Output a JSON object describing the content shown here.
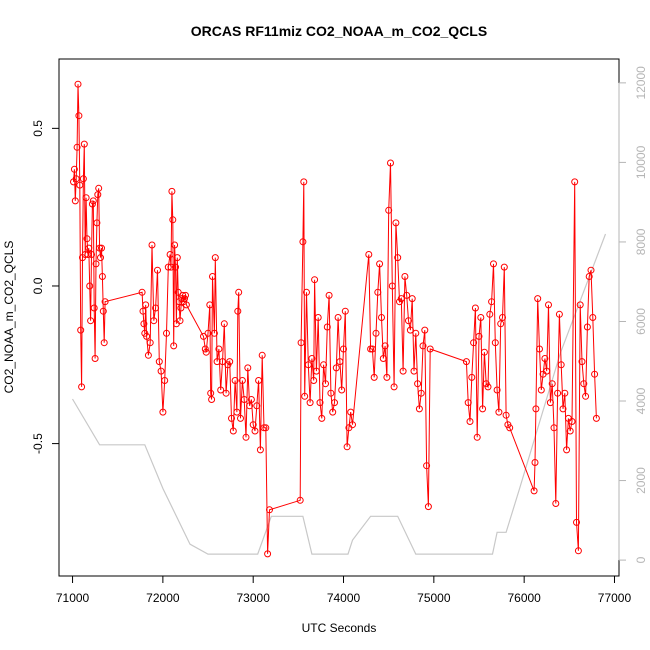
{
  "chart_data": {
    "type": "line",
    "title": "ORCAS RF11miz CO2_NOAA_m_CO2_QCLS",
    "xlabel": "UTC Seconds",
    "ylabel": "CO2_NOAA_m_CO2_QCLS",
    "xlim": [
      70850,
      77050
    ],
    "ylim": [
      -0.92,
      0.72
    ],
    "y2lim": [
      -400,
      12600
    ],
    "x_ticks": [
      71000,
      72000,
      73000,
      74000,
      75000,
      76000,
      77000
    ],
    "y_ticks": [
      -0.5,
      0.0,
      0.5
    ],
    "y_tick_labels": [
      "-0.5",
      "0.0",
      "0.5"
    ],
    "y2_ticks": [
      0,
      2000,
      4000,
      6000,
      8000,
      10000,
      12000
    ],
    "grid": false,
    "series": [
      {
        "role": "difference",
        "color": "#ff0000",
        "marker": "open-circle",
        "points": [
          [
            71010,
            0.33
          ],
          [
            71020,
            0.37
          ],
          [
            71030,
            0.27
          ],
          [
            71040,
            0.34
          ],
          [
            71050,
            0.44
          ],
          [
            71060,
            0.64
          ],
          [
            71070,
            0.54
          ],
          [
            71080,
            0.32
          ],
          [
            71090,
            -0.14
          ],
          [
            71100,
            -0.32
          ],
          [
            71110,
            0.09
          ],
          [
            71120,
            0.34
          ],
          [
            71130,
            0.45
          ],
          [
            71140,
            0.1
          ],
          [
            71150,
            0.28
          ],
          [
            71160,
            0.15
          ],
          [
            71170,
            0.1
          ],
          [
            71180,
            0.12
          ],
          [
            71190,
            0.0
          ],
          [
            71200,
            -0.11
          ],
          [
            71210,
            0.1
          ],
          [
            71220,
            0.26
          ],
          [
            71230,
            0.27
          ],
          [
            71240,
            -0.07
          ],
          [
            71250,
            -0.23
          ],
          [
            71260,
            0.07
          ],
          [
            71270,
            0.2
          ],
          [
            71280,
            0.29
          ],
          [
            71290,
            0.31
          ],
          [
            71300,
            0.12
          ],
          [
            71310,
            0.09
          ],
          [
            71320,
            0.12
          ],
          [
            71330,
            0.03
          ],
          [
            71340,
            -0.08
          ],
          [
            71350,
            -0.18
          ],
          [
            71360,
            -0.05
          ],
          [
            71770,
            -0.02
          ],
          [
            71780,
            -0.08
          ],
          [
            71790,
            -0.12
          ],
          [
            71800,
            -0.15
          ],
          [
            71810,
            -0.06
          ],
          [
            71820,
            -0.16
          ],
          [
            71840,
            -0.22
          ],
          [
            71860,
            -0.18
          ],
          [
            71880,
            0.13
          ],
          [
            71900,
            -0.11
          ],
          [
            71920,
            -0.07
          ],
          [
            71940,
            0.05
          ],
          [
            71960,
            -0.24
          ],
          [
            71980,
            -0.27
          ],
          [
            72000,
            -0.4
          ],
          [
            72020,
            -0.3
          ],
          [
            72040,
            -0.15
          ],
          [
            72060,
            0.06
          ],
          [
            72080,
            0.1
          ],
          [
            72090,
            0.06
          ],
          [
            72100,
            0.3
          ],
          [
            72110,
            0.21
          ],
          [
            72120,
            -0.19
          ],
          [
            72130,
            0.13
          ],
          [
            72140,
            0.06
          ],
          [
            72150,
            -0.12
          ],
          [
            72160,
            0.09
          ],
          [
            72170,
            -0.02
          ],
          [
            72180,
            -0.05
          ],
          [
            72190,
            -0.11
          ],
          [
            72200,
            -0.07
          ],
          [
            72210,
            -0.04
          ],
          [
            72220,
            -0.03
          ],
          [
            72230,
            -0.05
          ],
          [
            72240,
            -0.04
          ],
          [
            72250,
            -0.03
          ],
          [
            72260,
            -0.06
          ],
          [
            72450,
            -0.16
          ],
          [
            72470,
            -0.2
          ],
          [
            72480,
            -0.21
          ],
          [
            72500,
            -0.15
          ],
          [
            72520,
            -0.06
          ],
          [
            72530,
            -0.34
          ],
          [
            72540,
            -0.36
          ],
          [
            72550,
            0.03
          ],
          [
            72570,
            -0.15
          ],
          [
            72580,
            0.09
          ],
          [
            72600,
            -0.24
          ],
          [
            72620,
            -0.2
          ],
          [
            72640,
            -0.33
          ],
          [
            72660,
            -0.24
          ],
          [
            72680,
            -0.12
          ],
          [
            72700,
            -0.34
          ],
          [
            72720,
            -0.25
          ],
          [
            72740,
            -0.24
          ],
          [
            72760,
            -0.42
          ],
          [
            72780,
            -0.46
          ],
          [
            72800,
            -0.3
          ],
          [
            72820,
            -0.4
          ],
          [
            72830,
            -0.08
          ],
          [
            72840,
            -0.02
          ],
          [
            72860,
            -0.42
          ],
          [
            72880,
            -0.3
          ],
          [
            72900,
            -0.36
          ],
          [
            72920,
            -0.48
          ],
          [
            72940,
            -0.26
          ],
          [
            72960,
            -0.38
          ],
          [
            72980,
            -0.36
          ],
          [
            73000,
            -0.44
          ],
          [
            73020,
            -0.46
          ],
          [
            73040,
            -0.38
          ],
          [
            73060,
            -0.3
          ],
          [
            73080,
            -0.52
          ],
          [
            73100,
            -0.22
          ],
          [
            73120,
            -0.45
          ],
          [
            73140,
            -0.45
          ],
          [
            73160,
            -0.85
          ],
          [
            73180,
            -0.71
          ],
          [
            73520,
            -0.68
          ],
          [
            73530,
            -0.18
          ],
          [
            73550,
            0.14
          ],
          [
            73560,
            0.33
          ],
          [
            73570,
            -0.35
          ],
          [
            73590,
            -0.02
          ],
          [
            73610,
            -0.25
          ],
          [
            73630,
            -0.37
          ],
          [
            73650,
            -0.23
          ],
          [
            73670,
            -0.3
          ],
          [
            73680,
            0.02
          ],
          [
            73700,
            -0.27
          ],
          [
            73720,
            -0.1
          ],
          [
            73740,
            -0.37
          ],
          [
            73760,
            -0.42
          ],
          [
            73780,
            -0.25
          ],
          [
            73800,
            -0.31
          ],
          [
            73820,
            -0.13
          ],
          [
            73840,
            -0.03
          ],
          [
            73860,
            -0.34
          ],
          [
            73880,
            -0.4
          ],
          [
            73900,
            -0.37
          ],
          [
            73920,
            -0.26
          ],
          [
            73940,
            -0.1
          ],
          [
            73960,
            -0.24
          ],
          [
            73980,
            -0.33
          ],
          [
            74000,
            -0.2
          ],
          [
            74020,
            -0.08
          ],
          [
            74040,
            -0.51
          ],
          [
            74060,
            -0.45
          ],
          [
            74080,
            -0.4
          ],
          [
            74100,
            -0.44
          ],
          [
            74280,
            0.1
          ],
          [
            74300,
            -0.2
          ],
          [
            74320,
            -0.2
          ],
          [
            74340,
            -0.29
          ],
          [
            74360,
            -0.15
          ],
          [
            74380,
            -0.02
          ],
          [
            74400,
            0.07
          ],
          [
            74420,
            -0.1
          ],
          [
            74440,
            -0.23
          ],
          [
            74460,
            -0.19
          ],
          [
            74480,
            -0.29
          ],
          [
            74500,
            0.24
          ],
          [
            74520,
            0.39
          ],
          [
            74540,
            0.0
          ],
          [
            74560,
            -0.32
          ],
          [
            74580,
            0.2
          ],
          [
            74600,
            0.09
          ],
          [
            74620,
            -0.05
          ],
          [
            74640,
            -0.04
          ],
          [
            74660,
            -0.27
          ],
          [
            74680,
            0.03
          ],
          [
            74700,
            -0.03
          ],
          [
            74720,
            -0.11
          ],
          [
            74740,
            -0.14
          ],
          [
            74760,
            -0.04
          ],
          [
            74780,
            -0.27
          ],
          [
            74800,
            -0.15
          ],
          [
            74820,
            -0.31
          ],
          [
            74840,
            -0.39
          ],
          [
            74860,
            -0.34
          ],
          [
            74880,
            -0.19
          ],
          [
            74900,
            -0.14
          ],
          [
            74920,
            -0.57
          ],
          [
            74940,
            -0.7
          ],
          [
            74960,
            -0.2
          ],
          [
            75360,
            -0.24
          ],
          [
            75380,
            -0.37
          ],
          [
            75400,
            -0.43
          ],
          [
            75420,
            -0.29
          ],
          [
            75440,
            -0.18
          ],
          [
            75460,
            -0.07
          ],
          [
            75480,
            -0.48
          ],
          [
            75500,
            -0.16
          ],
          [
            75520,
            -0.1
          ],
          [
            75540,
            -0.39
          ],
          [
            75560,
            -0.21
          ],
          [
            75580,
            -0.31
          ],
          [
            75600,
            -0.32
          ],
          [
            75620,
            -0.09
          ],
          [
            75640,
            -0.05
          ],
          [
            75660,
            0.07
          ],
          [
            75680,
            -0.18
          ],
          [
            75700,
            -0.33
          ],
          [
            75720,
            -0.4
          ],
          [
            75740,
            -0.12
          ],
          [
            75760,
            -0.1
          ],
          [
            75780,
            0.06
          ],
          [
            75800,
            -0.41
          ],
          [
            75820,
            -0.44
          ],
          [
            75840,
            -0.45
          ],
          [
            76110,
            -0.65
          ],
          [
            76120,
            -0.56
          ],
          [
            76130,
            -0.39
          ],
          [
            76150,
            -0.04
          ],
          [
            76170,
            -0.2
          ],
          [
            76190,
            -0.33
          ],
          [
            76210,
            -0.28
          ],
          [
            76230,
            -0.23
          ],
          [
            76250,
            -0.27
          ],
          [
            76270,
            -0.06
          ],
          [
            76290,
            -0.37
          ],
          [
            76310,
            -0.31
          ],
          [
            76330,
            -0.45
          ],
          [
            76350,
            -0.69
          ],
          [
            76370,
            -0.34
          ],
          [
            76390,
            -0.09
          ],
          [
            76410,
            -0.25
          ],
          [
            76430,
            -0.39
          ],
          [
            76450,
            -0.34
          ],
          [
            76470,
            -0.52
          ],
          [
            76490,
            -0.42
          ],
          [
            76510,
            -0.46
          ],
          [
            76530,
            -0.43
          ],
          [
            76560,
            0.33
          ],
          [
            76580,
            -0.75
          ],
          [
            76600,
            -0.84
          ],
          [
            76620,
            -0.06
          ],
          [
            76640,
            -0.24
          ],
          [
            76660,
            -0.31
          ],
          [
            76680,
            -0.35
          ],
          [
            76700,
            -0.13
          ],
          [
            76720,
            0.03
          ],
          [
            76740,
            0.05
          ],
          [
            76760,
            -0.1
          ],
          [
            76780,
            -0.28
          ],
          [
            76800,
            -0.42
          ]
        ]
      },
      {
        "role": "altitude",
        "color": "#c8c8c8",
        "axis": "right",
        "points": [
          [
            71000,
            4050
          ],
          [
            71300,
            2900
          ],
          [
            71800,
            2900
          ],
          [
            72000,
            1800
          ],
          [
            72300,
            400
          ],
          [
            72500,
            150
          ],
          [
            73050,
            150
          ],
          [
            73200,
            1100
          ],
          [
            73500,
            1100
          ],
          [
            73550,
            1100
          ],
          [
            73650,
            150
          ],
          [
            74050,
            150
          ],
          [
            74100,
            500
          ],
          [
            74300,
            1100
          ],
          [
            74600,
            1100
          ],
          [
            74800,
            150
          ],
          [
            75650,
            150
          ],
          [
            75700,
            700
          ],
          [
            75800,
            700
          ],
          [
            75950,
            1800
          ],
          [
            76400,
            5200
          ],
          [
            76900,
            8200
          ]
        ]
      }
    ]
  }
}
